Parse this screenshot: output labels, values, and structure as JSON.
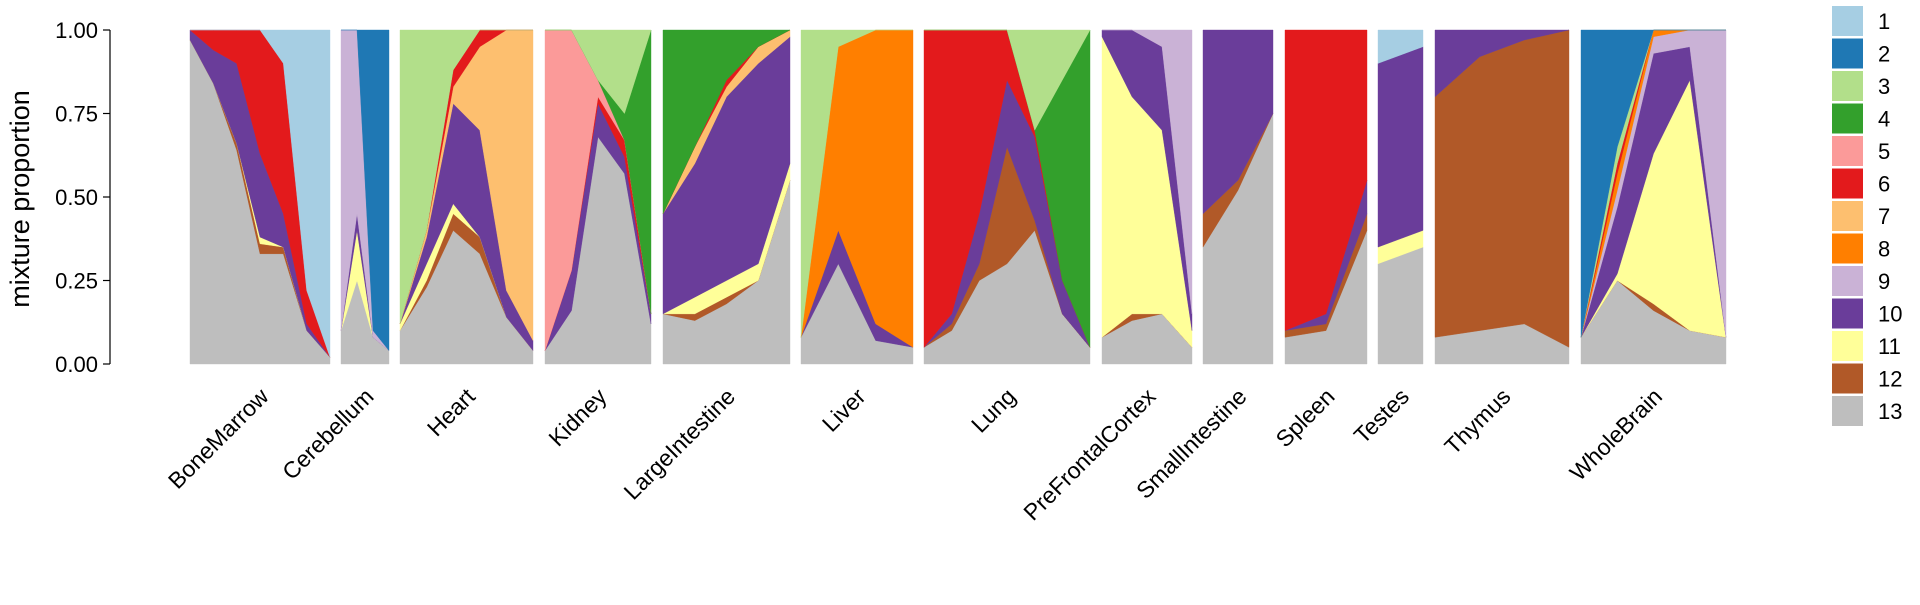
{
  "chart_data": {
    "type": "area",
    "subtype": "structure-plot",
    "title": "",
    "xlabel": "",
    "ylabel": "mixture proportion",
    "ylim": [
      0,
      1
    ],
    "yticks": [
      "0.00",
      "0.25",
      "0.50",
      "0.75",
      "1.00"
    ],
    "legend_position": "right",
    "components": [
      {
        "name": "1",
        "color": "#a6cee3"
      },
      {
        "name": "2",
        "color": "#1f78b4"
      },
      {
        "name": "3",
        "color": "#b2df8a"
      },
      {
        "name": "4",
        "color": "#33a02c"
      },
      {
        "name": "5",
        "color": "#fb9a99"
      },
      {
        "name": "6",
        "color": "#e31a1c"
      },
      {
        "name": "7",
        "color": "#fdbf6f"
      },
      {
        "name": "8",
        "color": "#ff7f00"
      },
      {
        "name": "9",
        "color": "#cab2d6"
      },
      {
        "name": "10",
        "color": "#6a3d9a"
      },
      {
        "name": "11",
        "color": "#ffff99"
      },
      {
        "name": "12",
        "color": "#b15928"
      },
      {
        "name": "13",
        "color": "#bebebe"
      }
    ],
    "groups": [
      {
        "label": "BoneMarrow",
        "profiles": [
          {
            "p": [
              0,
              0,
              0,
              0,
              0,
              0,
              0,
              0,
              0,
              0.03,
              0,
              0,
              0.97
            ]
          },
          {
            "p": [
              0,
              0,
              0,
              0,
              0,
              0.06,
              0,
              0,
              0,
              0.1,
              0,
              0,
              0.84
            ]
          },
          {
            "p": [
              0,
              0,
              0,
              0,
              0,
              0.1,
              0,
              0,
              0,
              0.24,
              0,
              0.02,
              0.64
            ]
          },
          {
            "p": [
              0,
              0,
              0,
              0,
              0,
              0.37,
              0,
              0,
              0,
              0.25,
              0.02,
              0.03,
              0.33
            ]
          },
          {
            "p": [
              0.1,
              0,
              0,
              0,
              0,
              0.45,
              0,
              0,
              0,
              0.1,
              0,
              0.02,
              0.33
            ]
          },
          {
            "p": [
              0.78,
              0,
              0,
              0,
              0,
              0.1,
              0,
              0,
              0,
              0.02,
              0,
              0,
              0.1
            ]
          },
          {
            "p": [
              0.98,
              0,
              0,
              0,
              0,
              0,
              0,
              0,
              0,
              0,
              0,
              0,
              0.02
            ]
          }
        ]
      },
      {
        "label": "Cerebellum",
        "profiles": [
          {
            "p": [
              0,
              0,
              0,
              0,
              0,
              0,
              0,
              0,
              0.9,
              0,
              0,
              0,
              0.1
            ]
          },
          {
            "p": [
              0,
              0,
              0,
              0,
              0,
              0,
              0,
              0,
              0.55,
              0.05,
              0.15,
              0,
              0.25
            ]
          },
          {
            "p": [
              0,
              0.9,
              0,
              0,
              0,
              0,
              0,
              0,
              0.02,
              0,
              0,
              0,
              0.08
            ]
          },
          {
            "p": [
              0,
              0.96,
              0,
              0,
              0,
              0,
              0,
              0,
              0,
              0,
              0,
              0,
              0.04
            ]
          }
        ]
      },
      {
        "label": "Heart",
        "profiles": [
          {
            "p": [
              0,
              0,
              0.88,
              0,
              0,
              0,
              0,
              0,
              0,
              0,
              0.02,
              0,
              0.1
            ]
          },
          {
            "p": [
              0,
              0,
              0.6,
              0,
              0,
              0,
              0.02,
              0,
              0,
              0.08,
              0.05,
              0.02,
              0.23
            ]
          },
          {
            "p": [
              0,
              0,
              0.12,
              0,
              0,
              0.05,
              0.05,
              0,
              0,
              0.3,
              0.03,
              0.05,
              0.4
            ]
          },
          {
            "p": [
              0,
              0,
              0,
              0,
              0,
              0.05,
              0.25,
              0,
              0,
              0.32,
              0,
              0.05,
              0.33
            ]
          },
          {
            "p": [
              0,
              0,
              0,
              0,
              0,
              0,
              0.78,
              0,
              0,
              0.08,
              0,
              0,
              0.14
            ]
          },
          {
            "p": [
              0,
              0,
              0,
              0,
              0,
              0,
              0.93,
              0,
              0,
              0.03,
              0,
              0,
              0.04
            ]
          }
        ]
      },
      {
        "label": "Kidney",
        "profiles": [
          {
            "p": [
              0,
              0,
              0,
              0,
              0.96,
              0,
              0,
              0,
              0,
              0,
              0,
              0,
              0.04
            ]
          },
          {
            "p": [
              0,
              0,
              0,
              0,
              0.72,
              0,
              0,
              0,
              0,
              0.12,
              0,
              0,
              0.16
            ]
          },
          {
            "p": [
              0,
              0,
              0.15,
              0,
              0.05,
              0.02,
              0,
              0,
              0,
              0.1,
              0,
              0,
              0.68
            ]
          },
          {
            "p": [
              0,
              0,
              0.25,
              0.08,
              0,
              0.05,
              0,
              0,
              0,
              0.05,
              0,
              0,
              0.57
            ]
          },
          {
            "p": [
              0,
              0,
              0,
              0.85,
              0,
              0,
              0,
              0,
              0,
              0.03,
              0,
              0,
              0.12
            ]
          }
        ]
      },
      {
        "label": "LargeIntestine",
        "profiles": [
          {
            "p": [
              0,
              0,
              0,
              0.55,
              0,
              0,
              0,
              0,
              0,
              0.3,
              0,
              0,
              0.15
            ]
          },
          {
            "p": [
              0,
              0,
              0,
              0.35,
              0,
              0,
              0.05,
              0,
              0,
              0.4,
              0.05,
              0.02,
              0.13
            ]
          },
          {
            "p": [
              0,
              0,
              0,
              0.15,
              0,
              0.02,
              0.03,
              0,
              0,
              0.55,
              0.05,
              0.02,
              0.18
            ]
          },
          {
            "p": [
              0,
              0,
              0,
              0.05,
              0,
              0,
              0.05,
              0,
              0,
              0.6,
              0.05,
              0,
              0.25
            ]
          },
          {
            "p": [
              0,
              0,
              0,
              0,
              0,
              0,
              0.02,
              0,
              0,
              0.38,
              0.05,
              0,
              0.55
            ]
          }
        ]
      },
      {
        "label": "Liver",
        "profiles": [
          {
            "p": [
              0,
              0,
              0.92,
              0,
              0,
              0,
              0,
              0,
              0,
              0,
              0,
              0,
              0.08
            ]
          },
          {
            "p": [
              0,
              0,
              0.05,
              0,
              0,
              0,
              0,
              0.55,
              0,
              0.1,
              0,
              0,
              0.3
            ]
          },
          {
            "p": [
              0,
              0,
              0,
              0,
              0,
              0,
              0,
              0.88,
              0,
              0.05,
              0,
              0,
              0.07
            ]
          },
          {
            "p": [
              0,
              0,
              0,
              0,
              0,
              0,
              0,
              0.95,
              0,
              0,
              0,
              0,
              0.05
            ]
          }
        ]
      },
      {
        "label": "Lung",
        "profiles": [
          {
            "p": [
              0,
              0,
              0,
              0,
              0,
              0.95,
              0,
              0,
              0,
              0,
              0,
              0,
              0.05
            ]
          },
          {
            "p": [
              0,
              0,
              0,
              0,
              0,
              0.85,
              0,
              0,
              0,
              0.03,
              0,
              0.02,
              0.1
            ]
          },
          {
            "p": [
              0,
              0,
              0,
              0,
              0,
              0.55,
              0,
              0,
              0,
              0.15,
              0,
              0.05,
              0.25
            ]
          },
          {
            "p": [
              0,
              0,
              0,
              0,
              0,
              0.15,
              0,
              0,
              0,
              0.2,
              0,
              0.35,
              0.3
            ]
          },
          {
            "p": [
              0,
              0,
              0.3,
              0,
              0,
              0.02,
              0,
              0,
              0,
              0.25,
              0,
              0.03,
              0.4
            ]
          },
          {
            "p": [
              0,
              0,
              0.15,
              0.6,
              0,
              0,
              0,
              0,
              0,
              0.1,
              0,
              0,
              0.15
            ]
          },
          {
            "p": [
              0,
              0,
              0,
              0.95,
              0,
              0,
              0,
              0,
              0,
              0,
              0,
              0,
              0.05
            ]
          }
        ]
      },
      {
        "label": "PreFrontalCortex",
        "profiles": [
          {
            "p": [
              0,
              0,
              0,
              0,
              0,
              0,
              0,
              0,
              0,
              0.02,
              0.9,
              0,
              0.08
            ]
          },
          {
            "p": [
              0,
              0,
              0,
              0,
              0,
              0,
              0,
              0,
              0,
              0.2,
              0.65,
              0.02,
              0.13
            ]
          },
          {
            "p": [
              0,
              0,
              0,
              0,
              0,
              0,
              0,
              0,
              0.05,
              0.25,
              0.55,
              0,
              0.15
            ]
          },
          {
            "p": [
              0,
              0,
              0,
              0,
              0,
              0,
              0,
              0,
              0.85,
              0.05,
              0.05,
              0,
              0.05
            ]
          }
        ]
      },
      {
        "label": "SmallIntestine",
        "profiles": [
          {
            "p": [
              0,
              0,
              0,
              0,
              0,
              0,
              0,
              0,
              0,
              0.55,
              0,
              0.1,
              0.35
            ]
          },
          {
            "p": [
              0,
              0,
              0,
              0,
              0,
              0,
              0,
              0,
              0,
              0.45,
              0,
              0.03,
              0.52
            ]
          },
          {
            "p": [
              0,
              0,
              0,
              0,
              0,
              0,
              0,
              0,
              0,
              0.25,
              0,
              0,
              0.75
            ]
          }
        ]
      },
      {
        "label": "Spleen",
        "profiles": [
          {
            "p": [
              0,
              0,
              0,
              0,
              0,
              0.9,
              0,
              0,
              0,
              0,
              0,
              0.02,
              0.08
            ]
          },
          {
            "p": [
              0,
              0,
              0,
              0,
              0,
              0.85,
              0,
              0,
              0,
              0.03,
              0,
              0.02,
              0.1
            ]
          },
          {
            "p": [
              0,
              0,
              0,
              0,
              0,
              0.45,
              0,
              0,
              0,
              0.1,
              0,
              0.05,
              0.4
            ]
          }
        ]
      },
      {
        "label": "Testes",
        "profiles": [
          {
            "p": [
              0.1,
              0,
              0,
              0,
              0,
              0,
              0,
              0,
              0,
              0.55,
              0.05,
              0,
              0.3
            ]
          },
          {
            "p": [
              0.05,
              0,
              0,
              0,
              0,
              0,
              0,
              0,
              0,
              0.55,
              0.05,
              0,
              0.35
            ]
          }
        ]
      },
      {
        "label": "Thymus",
        "profiles": [
          {
            "p": [
              0,
              0,
              0,
              0,
              0,
              0,
              0,
              0,
              0,
              0.2,
              0,
              0.72,
              0.08
            ]
          },
          {
            "p": [
              0,
              0,
              0,
              0,
              0,
              0,
              0,
              0,
              0,
              0.08,
              0,
              0.82,
              0.1
            ]
          },
          {
            "p": [
              0,
              0,
              0,
              0,
              0,
              0,
              0,
              0,
              0,
              0.03,
              0,
              0.85,
              0.12
            ]
          },
          {
            "p": [
              0,
              0,
              0,
              0,
              0,
              0,
              0,
              0,
              0,
              0,
              0,
              0.95,
              0.05
            ]
          }
        ]
      },
      {
        "label": "WholeBrain",
        "profiles": [
          {
            "p": [
              0,
              0.92,
              0,
              0,
              0,
              0,
              0,
              0,
              0,
              0,
              0,
              0,
              0.08
            ]
          },
          {
            "p": [
              0,
              0.35,
              0.05,
              0,
              0,
              0.03,
              0,
              0.05,
              0.05,
              0.2,
              0.02,
              0,
              0.25
            ]
          },
          {
            "p": [
              0,
              0,
              0,
              0,
              0,
              0,
              0,
              0.02,
              0.05,
              0.3,
              0.45,
              0.02,
              0.16
            ]
          },
          {
            "p": [
              0,
              0,
              0,
              0,
              0,
              0,
              0,
              0,
              0.05,
              0.1,
              0.75,
              0,
              0.1
            ]
          },
          {
            "p": [
              0,
              0,
              0,
              0,
              0,
              0,
              0,
              0,
              0.92,
              0,
              0,
              0,
              0.08
            ]
          }
        ]
      }
    ]
  }
}
